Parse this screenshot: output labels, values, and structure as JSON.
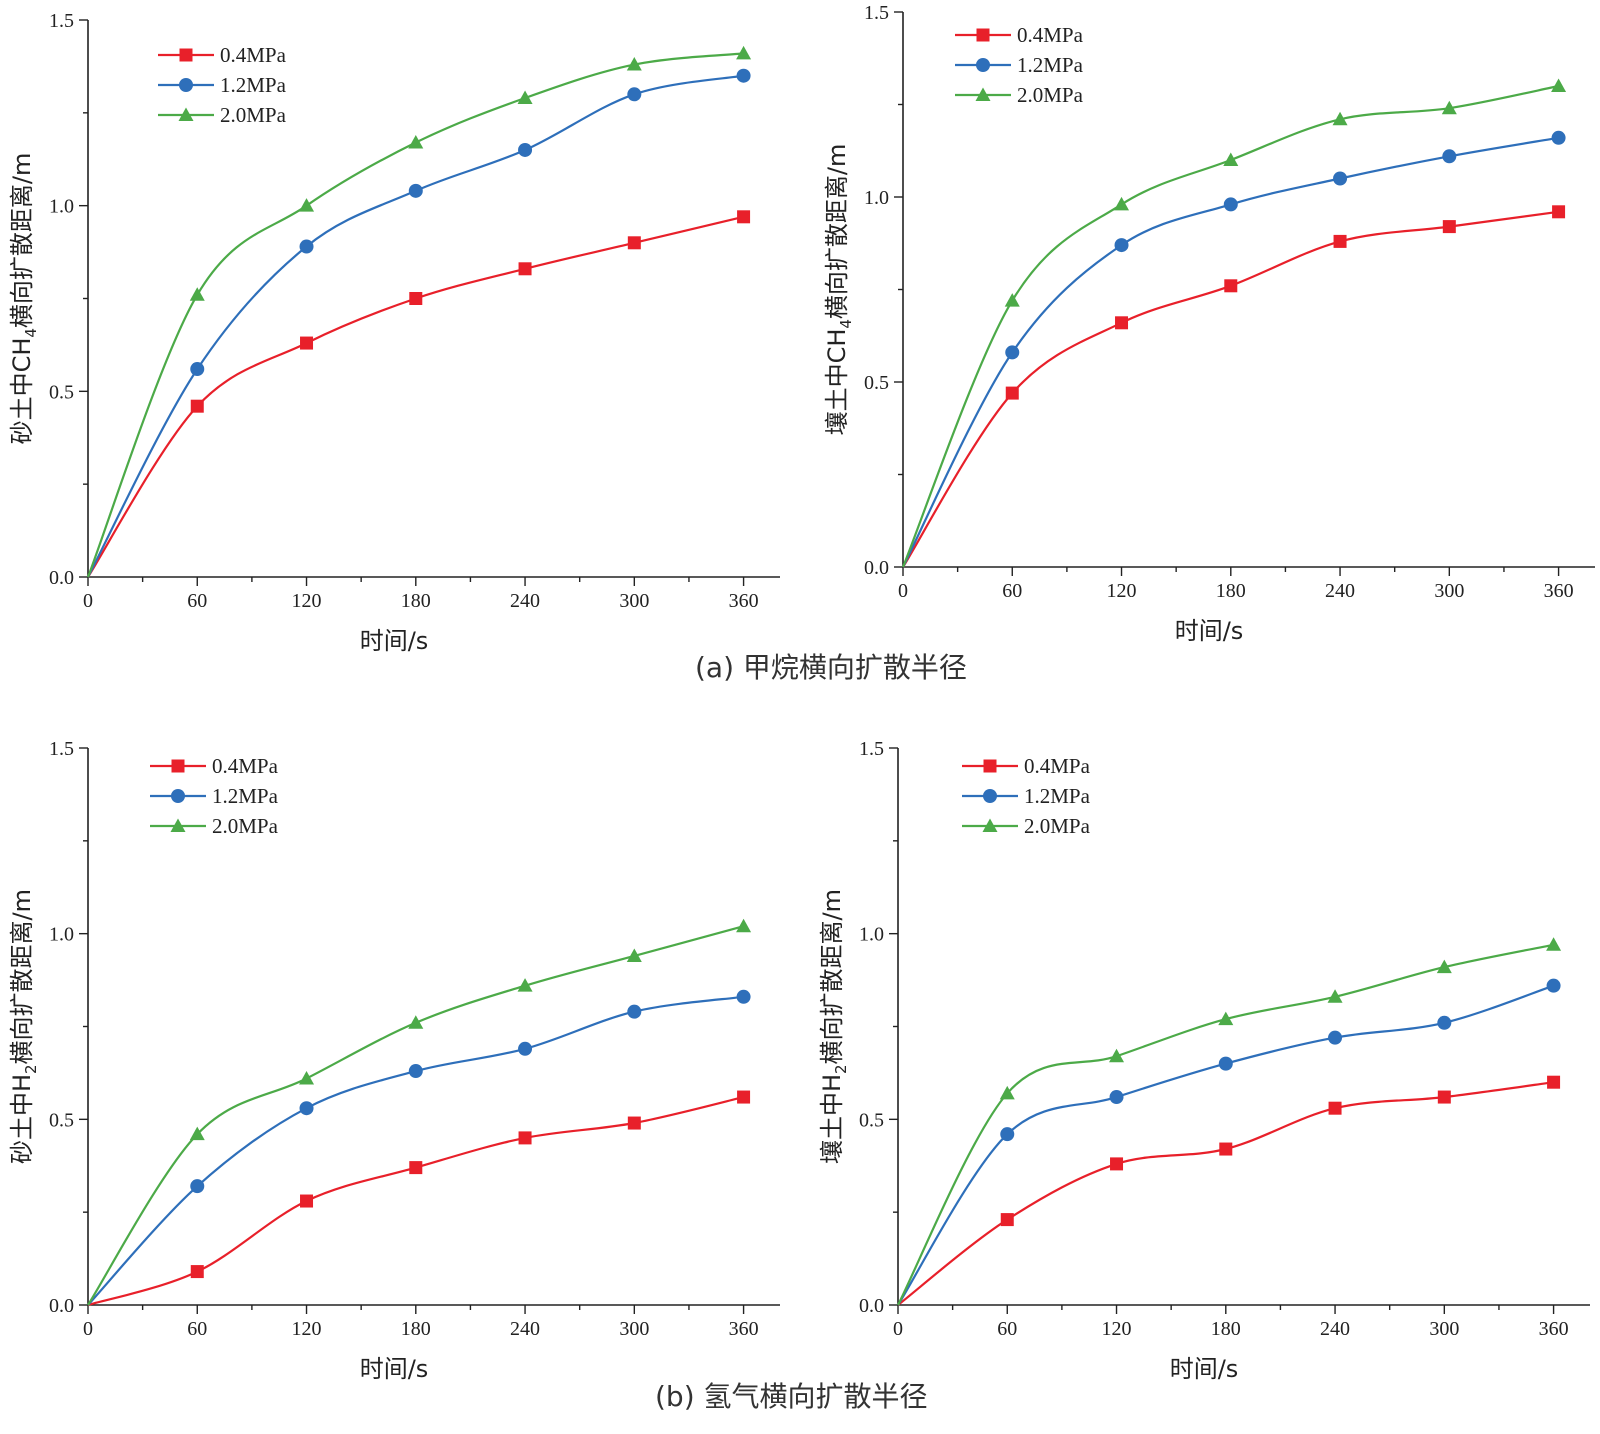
{
  "figure": {
    "caption_a": "(a) 甲烷横向扩散半径",
    "caption_b": "(b) 氢气横向扩散半径"
  },
  "colors": {
    "series_0.4": "#e8202a",
    "series_1.2": "#2e6fba",
    "series_2.0": "#4caa48",
    "axis": "#222222"
  },
  "chart_data": [
    {
      "id": "sand-ch4",
      "type": "line",
      "title": "",
      "xlabel": "时间/s",
      "ylabel_prefix": "砂土中CH",
      "ylabel_sub": "4",
      "ylabel_suffix": "横向扩散距离/m",
      "x": [
        0,
        60,
        120,
        180,
        240,
        300,
        360
      ],
      "xlim": [
        0,
        380
      ],
      "ylim": [
        0,
        1.5
      ],
      "xticks": [
        "0",
        "60",
        "120",
        "180",
        "240",
        "300",
        "360"
      ],
      "yticks": [
        "0.0",
        "0.5",
        "1.0",
        "1.5"
      ],
      "legend": "top-left",
      "series": [
        {
          "name": "0.4MPa",
          "marker": "square",
          "values": [
            0,
            0.46,
            0.63,
            0.75,
            0.83,
            0.9,
            0.97
          ]
        },
        {
          "name": "1.2MPa",
          "marker": "circle",
          "values": [
            0,
            0.56,
            0.89,
            1.04,
            1.15,
            1.3,
            1.35
          ]
        },
        {
          "name": "2.0MPa",
          "marker": "triangle",
          "values": [
            0,
            0.76,
            1.0,
            1.17,
            1.29,
            1.38,
            1.41
          ]
        }
      ]
    },
    {
      "id": "loam-ch4",
      "type": "line",
      "title": "",
      "xlabel": "时间/s",
      "ylabel_prefix": "壤土中CH",
      "ylabel_sub": "4",
      "ylabel_suffix": "横向扩散距离/m",
      "x": [
        0,
        60,
        120,
        180,
        240,
        300,
        360
      ],
      "xlim": [
        0,
        380
      ],
      "ylim": [
        0,
        1.5
      ],
      "xticks": [
        "0",
        "60",
        "120",
        "180",
        "240",
        "300",
        "360"
      ],
      "yticks": [
        "0.0",
        "0.5",
        "1.0",
        "1.5"
      ],
      "legend": "top-left",
      "series": [
        {
          "name": "0.4MPa",
          "marker": "square",
          "values": [
            0,
            0.47,
            0.66,
            0.76,
            0.88,
            0.92,
            0.96
          ]
        },
        {
          "name": "1.2MPa",
          "marker": "circle",
          "values": [
            0,
            0.58,
            0.87,
            0.98,
            1.05,
            1.11,
            1.16
          ]
        },
        {
          "name": "2.0MPa",
          "marker": "triangle",
          "values": [
            0,
            0.72,
            0.98,
            1.1,
            1.21,
            1.24,
            1.3
          ]
        }
      ]
    },
    {
      "id": "sand-h2",
      "type": "line",
      "title": "",
      "xlabel": "时间/s",
      "ylabel_prefix": "砂土中H",
      "ylabel_sub": "2",
      "ylabel_suffix": "横向扩散距离/m",
      "x": [
        0,
        60,
        120,
        180,
        240,
        300,
        360
      ],
      "xlim": [
        0,
        380
      ],
      "ylim": [
        0,
        1.5
      ],
      "xticks": [
        "0",
        "60",
        "120",
        "180",
        "240",
        "300",
        "360"
      ],
      "yticks": [
        "0.0",
        "0.5",
        "1.0",
        "1.5"
      ],
      "legend": "top-left",
      "series": [
        {
          "name": "0.4MPa",
          "marker": "square",
          "values": [
            0,
            0.09,
            0.28,
            0.37,
            0.45,
            0.49,
            0.56
          ]
        },
        {
          "name": "1.2MPa",
          "marker": "circle",
          "values": [
            0,
            0.32,
            0.53,
            0.63,
            0.69,
            0.79,
            0.83
          ]
        },
        {
          "name": "2.0MPa",
          "marker": "triangle",
          "values": [
            0,
            0.46,
            0.61,
            0.76,
            0.86,
            0.94,
            1.02
          ]
        }
      ]
    },
    {
      "id": "loam-h2",
      "type": "line",
      "title": "",
      "xlabel": "时间/s",
      "ylabel_prefix": "壤土中H",
      "ylabel_sub": "2",
      "ylabel_suffix": "横向扩散距离/m",
      "x": [
        0,
        60,
        120,
        180,
        240,
        300,
        360
      ],
      "xlim": [
        0,
        380
      ],
      "ylim": [
        0,
        1.5
      ],
      "xticks": [
        "0",
        "60",
        "120",
        "180",
        "240",
        "300",
        "360"
      ],
      "yticks": [
        "0.0",
        "0.5",
        "1.0",
        "1.5"
      ],
      "legend": "top-left",
      "series": [
        {
          "name": "0.4MPa",
          "marker": "square",
          "values": [
            0,
            0.23,
            0.38,
            0.42,
            0.53,
            0.56,
            0.6
          ]
        },
        {
          "name": "1.2MPa",
          "marker": "circle",
          "values": [
            0,
            0.46,
            0.56,
            0.65,
            0.72,
            0.76,
            0.86
          ]
        },
        {
          "name": "2.0MPa",
          "marker": "triangle",
          "values": [
            0,
            0.57,
            0.67,
            0.77,
            0.83,
            0.91,
            0.97
          ]
        }
      ]
    }
  ]
}
